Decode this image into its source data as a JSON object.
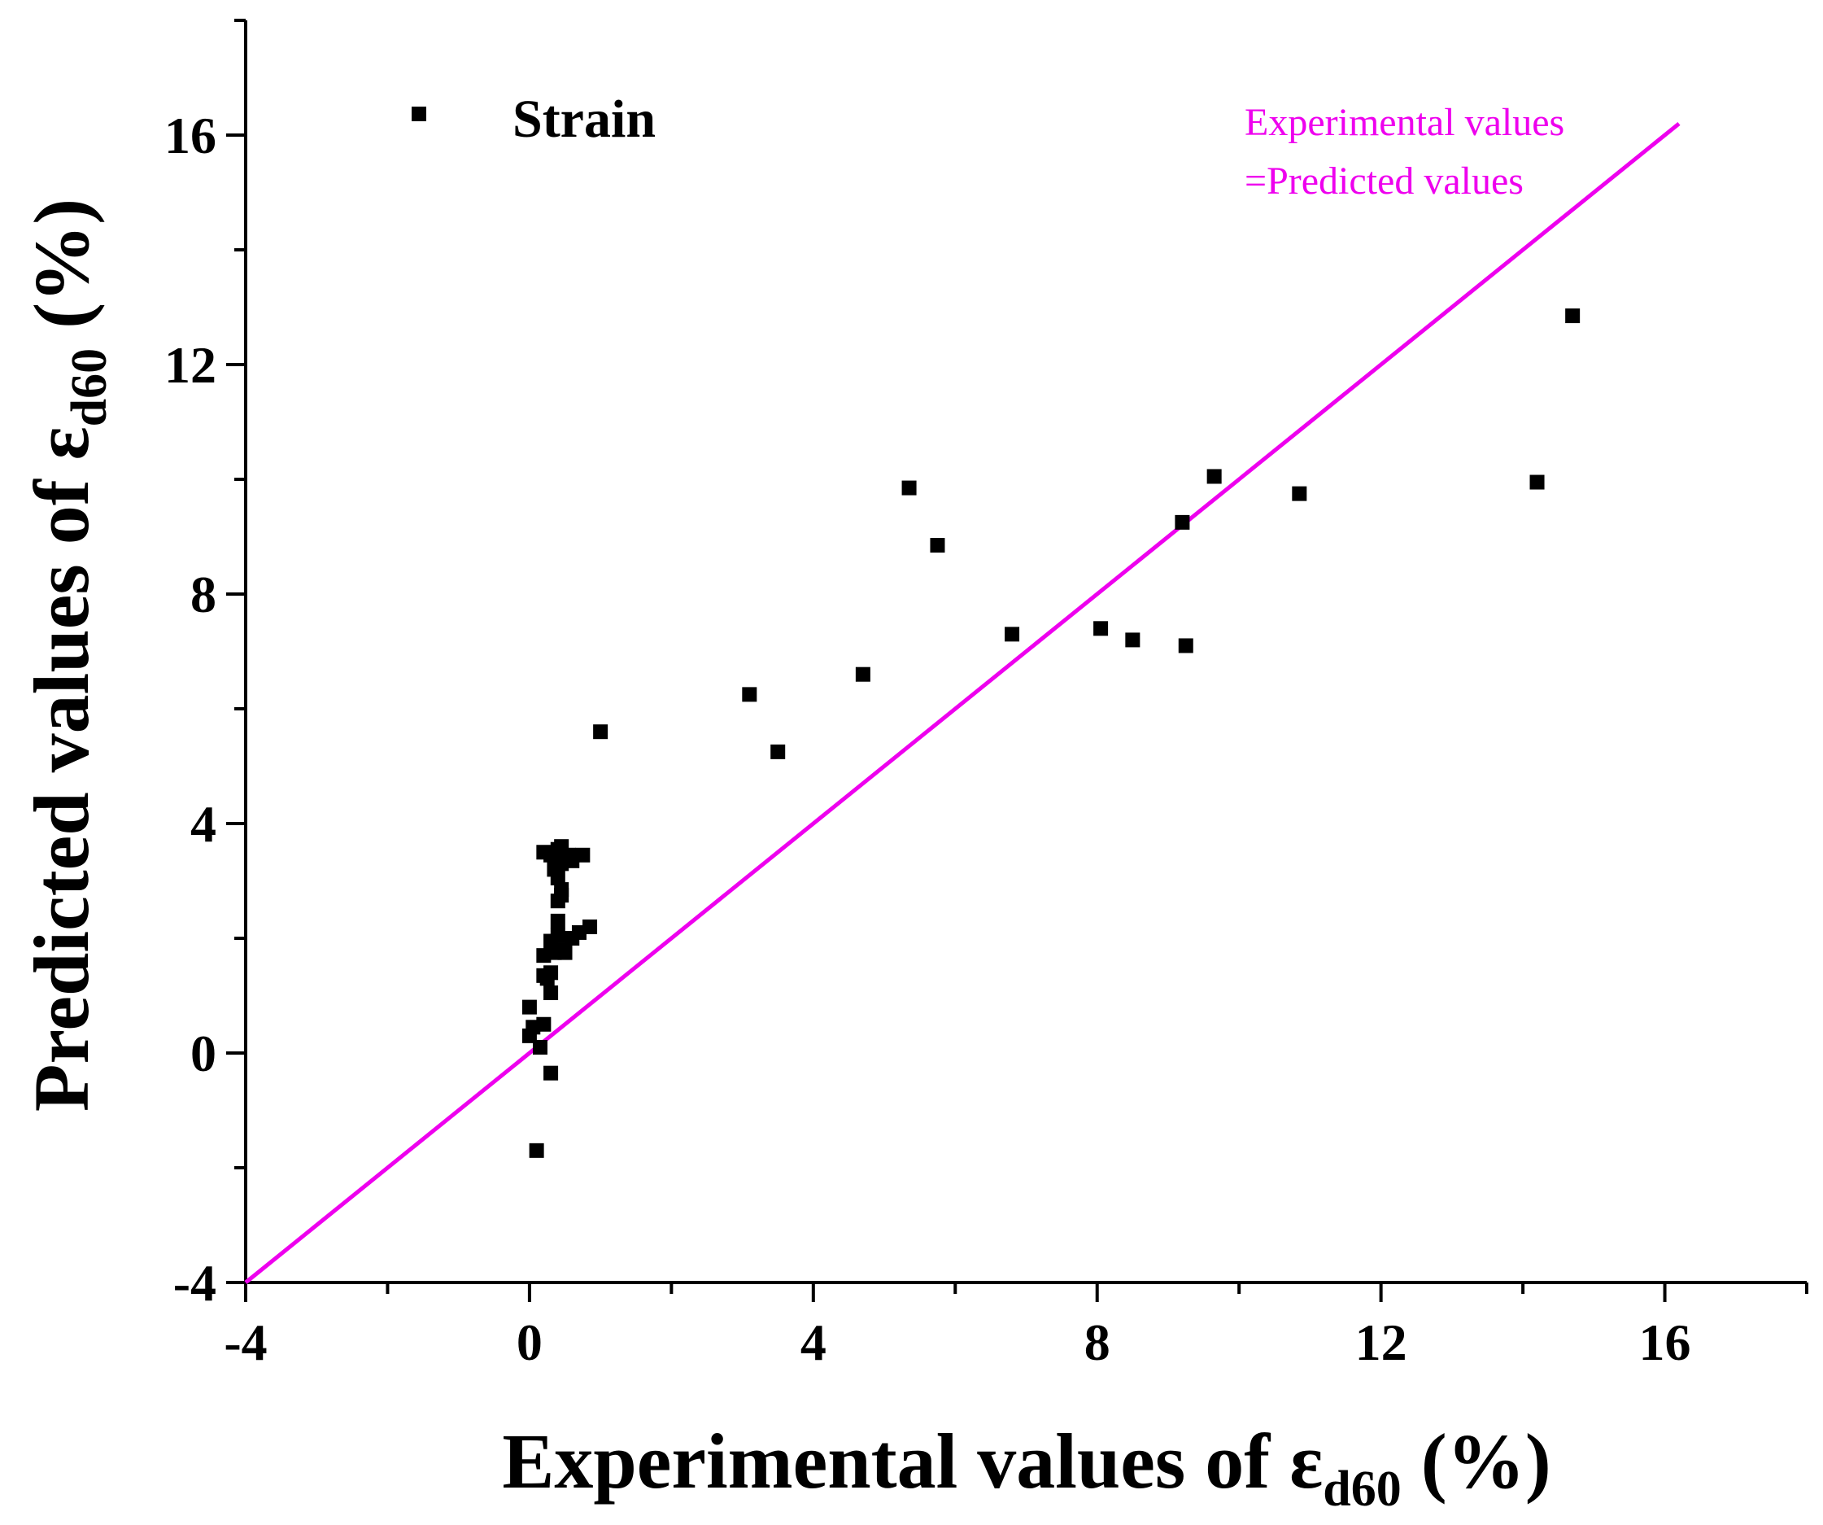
{
  "chart_data": {
    "type": "scatter",
    "title": "",
    "xlabel": "Experimental values of ε",
    "xlabel_sub": "d60",
    "xlabel_suffix": " (%)",
    "ylabel": "Predicted values of ε",
    "ylabel_sub": "d60",
    "ylabel_suffix": " (%)",
    "xlim": [
      -4,
      18
    ],
    "ylim": [
      -4,
      18
    ],
    "xticks": [
      -4,
      0,
      4,
      8,
      12,
      16
    ],
    "yticks": [
      -4,
      0,
      4,
      8,
      12,
      16
    ],
    "minor_step": 2,
    "grid": false,
    "legend_position": "top-left",
    "series": [
      {
        "name": "Strain",
        "marker": "square",
        "color": "#000000",
        "points": [
          [
            0.1,
            -1.7
          ],
          [
            0.3,
            -0.35
          ],
          [
            0.15,
            0.1
          ],
          [
            0.0,
            0.3
          ],
          [
            0.05,
            0.45
          ],
          [
            0.2,
            0.5
          ],
          [
            0.0,
            0.8
          ],
          [
            0.3,
            1.05
          ],
          [
            0.2,
            1.35
          ],
          [
            0.25,
            1.3
          ],
          [
            0.3,
            1.4
          ],
          [
            0.2,
            1.7
          ],
          [
            0.35,
            1.75
          ],
          [
            0.45,
            1.8
          ],
          [
            0.5,
            1.75
          ],
          [
            0.3,
            1.95
          ],
          [
            0.4,
            2.05
          ],
          [
            0.6,
            2.0
          ],
          [
            0.7,
            2.1
          ],
          [
            0.85,
            2.2
          ],
          [
            0.4,
            2.3
          ],
          [
            0.4,
            2.65
          ],
          [
            0.45,
            2.75
          ],
          [
            0.45,
            2.85
          ],
          [
            0.4,
            3.05
          ],
          [
            0.35,
            3.2
          ],
          [
            0.45,
            3.3
          ],
          [
            0.5,
            3.4
          ],
          [
            0.2,
            3.5
          ],
          [
            0.3,
            3.45
          ],
          [
            0.4,
            3.55
          ],
          [
            0.45,
            3.6
          ],
          [
            0.55,
            3.45
          ],
          [
            0.6,
            3.35
          ],
          [
            0.75,
            3.45
          ],
          [
            1.0,
            5.6
          ],
          [
            3.1,
            6.25
          ],
          [
            3.5,
            5.25
          ],
          [
            4.7,
            6.6
          ],
          [
            5.35,
            9.85
          ],
          [
            5.75,
            8.85
          ],
          [
            6.8,
            7.3
          ],
          [
            8.05,
            7.4
          ],
          [
            8.5,
            7.2
          ],
          [
            9.2,
            9.25
          ],
          [
            9.25,
            7.1
          ],
          [
            9.65,
            10.05
          ],
          [
            10.85,
            9.75
          ],
          [
            14.2,
            9.95
          ],
          [
            14.7,
            12.85
          ]
        ]
      }
    ],
    "reference_line": {
      "label_line1": "Experimental values",
      "label_line2": "=Predicted values",
      "color": "#ee00ee",
      "from": [
        -4,
        -4
      ],
      "to": [
        16.2,
        16.2
      ]
    }
  }
}
